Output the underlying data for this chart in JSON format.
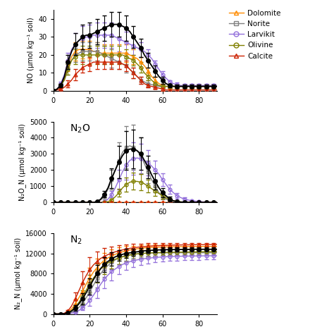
{
  "x": [
    0,
    2,
    4,
    6,
    8,
    10,
    12,
    14,
    16,
    18,
    20,
    22,
    24,
    26,
    28,
    30,
    32,
    34,
    36,
    38,
    40,
    42,
    44,
    46,
    48,
    50,
    52,
    54,
    56,
    58,
    60,
    62,
    64,
    66,
    68,
    70,
    72,
    74,
    76,
    78,
    80,
    82,
    84,
    86,
    88,
    90
  ],
  "colors": {
    "Dolomite": "#FF8C00",
    "Norite": "#808080",
    "Larvikit": "#9370DB",
    "Olivine": "#808000",
    "Calcite": "#CC2200"
  },
  "control_color": "#000000",
  "legend_labels": [
    "Dolomite",
    "Norite",
    "Larvikit",
    "Olivine",
    "Calcite"
  ],
  "NO": {
    "control": [
      0,
      1,
      3,
      8,
      16,
      22,
      26,
      28,
      30,
      31,
      31,
      32,
      33,
      34,
      35,
      36,
      37,
      37,
      37,
      36,
      35,
      33,
      30,
      27,
      24,
      20,
      17,
      14,
      11,
      8,
      6,
      4,
      3,
      2.5,
      2.5,
      2.5,
      2.5,
      2.5,
      2.5,
      2.5,
      2.5,
      2.5,
      2.5,
      2.5,
      2.5,
      2.5
    ],
    "Dolomite": [
      0,
      1,
      3,
      7,
      14,
      19,
      22,
      23,
      23,
      23,
      23,
      22,
      22,
      21,
      21,
      21,
      21,
      21,
      21,
      21,
      21,
      20,
      19,
      18,
      16,
      14,
      11,
      8,
      6,
      4,
      3,
      2.5,
      2.5,
      2.5,
      2.5,
      2.5,
      2.5,
      2.5,
      2.5,
      2.5,
      2.5,
      2.5,
      2.5,
      2.5,
      2.5,
      2.5
    ],
    "Norite": [
      0,
      1,
      3,
      6,
      12,
      17,
      20,
      21,
      22,
      22,
      22,
      22,
      22,
      21,
      20,
      19,
      18,
      17,
      16,
      15,
      14,
      12,
      10,
      8,
      6,
      5,
      4,
      3.5,
      3,
      2.5,
      2.5,
      2.5,
      2.5,
      2.5,
      2.5,
      2.5,
      2.5,
      2.5,
      2.5,
      2.5,
      2.5,
      2.5,
      2.5,
      2.5,
      2.5,
      2.5
    ],
    "Larvikit": [
      0,
      1,
      4,
      9,
      17,
      23,
      26,
      28,
      29,
      30,
      30,
      31,
      31,
      31,
      31,
      31,
      31,
      30,
      29,
      28,
      27,
      26,
      25,
      24,
      23,
      22,
      20,
      18,
      15,
      12,
      9,
      7,
      5,
      4,
      3.5,
      3,
      3,
      3,
      3,
      3,
      3,
      3,
      3,
      3,
      3,
      3
    ],
    "Olivine": [
      0,
      1,
      3,
      6,
      12,
      17,
      19,
      20,
      20,
      20,
      20,
      20,
      20,
      20,
      20,
      20,
      20,
      20,
      20,
      20,
      19,
      18,
      17,
      15,
      13,
      10,
      8,
      6,
      4,
      3,
      2.5,
      2.5,
      2.5,
      2.5,
      2.5,
      2.5,
      2.5,
      2.5,
      2.5,
      2.5,
      2.5,
      2.5,
      2.5,
      2.5,
      2.5,
      2.5
    ],
    "Calcite": [
      0,
      0.5,
      1,
      2,
      4,
      6,
      9,
      11,
      13,
      14,
      15,
      16,
      16,
      16,
      16,
      16,
      16,
      16,
      16,
      15,
      14,
      12,
      10,
      8,
      6,
      4,
      3,
      2.5,
      2,
      1.5,
      1,
      0.5,
      0.5,
      0.5,
      0.5,
      0.5,
      0.5,
      0.5,
      0.5,
      0.5,
      0.5,
      0.5,
      0.5,
      0.5,
      0.5,
      0.5
    ],
    "control_err": [
      0,
      0.5,
      1,
      2,
      4,
      5,
      6,
      7,
      7,
      7,
      7,
      7,
      7,
      7,
      7,
      7,
      7,
      7,
      7,
      7,
      7,
      6,
      6,
      5,
      5,
      4,
      4,
      3,
      3,
      2,
      2,
      1,
      1,
      1,
      1,
      1,
      1,
      1,
      1,
      1,
      1,
      1,
      1,
      1,
      1,
      1
    ],
    "Dolomite_err": [
      0,
      0.5,
      1,
      2,
      3,
      4,
      5,
      5,
      5,
      5,
      5,
      5,
      5,
      5,
      5,
      5,
      5,
      5,
      5,
      5,
      5,
      4,
      4,
      3,
      3,
      3,
      2,
      2,
      2,
      1,
      1,
      1,
      1,
      1,
      1,
      1,
      1,
      1,
      1,
      1,
      1,
      1,
      1,
      1,
      1,
      1
    ],
    "Norite_err": [
      0,
      0.5,
      1,
      2,
      3,
      4,
      4,
      5,
      5,
      5,
      5,
      5,
      5,
      5,
      5,
      5,
      5,
      5,
      4,
      4,
      4,
      3,
      3,
      3,
      2,
      2,
      2,
      1,
      1,
      1,
      1,
      1,
      1,
      1,
      1,
      1,
      1,
      1,
      1,
      1,
      1,
      1,
      1,
      1,
      1,
      1
    ],
    "Larvikit_err": [
      0,
      0.5,
      1,
      2,
      4,
      5,
      6,
      6,
      7,
      7,
      7,
      7,
      7,
      7,
      7,
      7,
      7,
      7,
      7,
      6,
      6,
      5,
      5,
      5,
      4,
      4,
      3,
      3,
      2,
      2,
      2,
      1,
      1,
      1,
      1,
      1,
      1,
      1,
      1,
      1,
      1,
      1,
      1,
      1,
      1,
      1
    ],
    "Olivine_err": [
      0,
      0.5,
      1,
      2,
      3,
      4,
      4,
      5,
      5,
      5,
      5,
      5,
      5,
      5,
      5,
      5,
      5,
      5,
      5,
      4,
      4,
      4,
      3,
      3,
      3,
      2,
      2,
      2,
      1,
      1,
      1,
      1,
      1,
      1,
      1,
      1,
      1,
      1,
      1,
      1,
      1,
      1,
      1,
      1,
      1,
      1
    ],
    "Calcite_err": [
      0,
      0.3,
      0.5,
      1,
      2,
      2,
      3,
      3,
      3,
      4,
      4,
      4,
      4,
      4,
      4,
      4,
      4,
      4,
      4,
      4,
      3,
      3,
      3,
      2,
      2,
      2,
      1,
      1,
      1,
      1,
      1,
      1,
      1,
      1,
      1,
      1,
      1,
      1,
      1,
      1,
      1,
      1,
      1,
      1,
      1,
      1
    ]
  },
  "N2O": {
    "control": [
      0,
      0,
      0,
      0,
      0,
      0,
      0,
      0,
      0,
      0,
      0,
      0,
      50,
      200,
      500,
      900,
      1500,
      2000,
      2500,
      2900,
      3200,
      3300,
      3300,
      3200,
      3000,
      2600,
      2200,
      1700,
      1300,
      900,
      600,
      400,
      200,
      100,
      50,
      20,
      10,
      5,
      2,
      1,
      0,
      0,
      0,
      0,
      0,
      0
    ],
    "Dolomite": [
      0,
      0,
      0,
      0,
      0,
      0,
      0,
      0,
      0,
      0,
      0,
      0,
      0,
      0,
      0,
      0,
      0,
      0,
      0,
      0,
      0,
      0,
      0,
      0,
      0,
      0,
      0,
      0,
      0,
      0,
      0,
      0,
      0,
      0,
      0,
      0,
      0,
      0,
      0,
      0,
      0,
      0,
      0,
      0,
      0,
      0
    ],
    "Norite": [
      0,
      0,
      0,
      0,
      0,
      0,
      0,
      0,
      0,
      0,
      0,
      0,
      30,
      150,
      400,
      800,
      1400,
      2000,
      2600,
      3100,
      3400,
      3500,
      3400,
      3200,
      2900,
      2400,
      1900,
      1400,
      1000,
      600,
      400,
      200,
      100,
      50,
      20,
      10,
      5,
      2,
      1,
      0,
      0,
      0,
      0,
      0,
      0,
      0
    ],
    "Larvikit": [
      0,
      0,
      0,
      0,
      0,
      0,
      0,
      0,
      0,
      0,
      0,
      0,
      0,
      0,
      50,
      200,
      500,
      900,
      1400,
      1900,
      2300,
      2600,
      2700,
      2750,
      2700,
      2600,
      2450,
      2250,
      2000,
      1750,
      1400,
      1100,
      800,
      600,
      400,
      300,
      200,
      150,
      100,
      80,
      60,
      40,
      30,
      20,
      10,
      5
    ],
    "Olivine": [
      0,
      0,
      0,
      0,
      0,
      0,
      0,
      0,
      0,
      0,
      0,
      0,
      0,
      0,
      0,
      50,
      150,
      350,
      600,
      900,
      1100,
      1250,
      1300,
      1300,
      1250,
      1150,
      1000,
      850,
      700,
      550,
      400,
      280,
      180,
      110,
      70,
      40,
      20,
      10,
      5,
      2,
      0,
      0,
      0,
      0,
      0,
      0
    ],
    "Calcite": [
      0,
      0,
      0,
      0,
      0,
      0,
      0,
      0,
      0,
      0,
      0,
      0,
      0,
      0,
      0,
      0,
      0,
      0,
      0,
      0,
      0,
      0,
      0,
      0,
      0,
      0,
      0,
      0,
      0,
      0,
      0,
      0,
      0,
      0,
      0,
      0,
      0,
      0,
      0,
      0,
      0,
      0,
      0,
      0,
      0,
      0
    ],
    "control_err": [
      0,
      0,
      0,
      0,
      0,
      0,
      0,
      0,
      0,
      0,
      0,
      0,
      20,
      80,
      200,
      400,
      600,
      800,
      1000,
      1100,
      1200,
      1200,
      1200,
      1100,
      1000,
      900,
      700,
      600,
      500,
      400,
      300,
      200,
      150,
      100,
      50,
      20,
      10,
      5,
      2,
      1,
      0,
      0,
      0,
      0,
      0,
      0
    ],
    "Norite_err": [
      0,
      0,
      0,
      0,
      0,
      0,
      0,
      0,
      0,
      0,
      0,
      0,
      15,
      60,
      150,
      350,
      600,
      900,
      1100,
      1200,
      1300,
      1400,
      1400,
      1300,
      1100,
      900,
      700,
      500,
      400,
      300,
      200,
      150,
      100,
      50,
      20,
      10,
      5,
      2,
      1,
      0,
      0,
      0,
      0,
      0,
      0,
      0
    ],
    "Larvikit_err": [
      0,
      0,
      0,
      0,
      0,
      0,
      0,
      0,
      0,
      0,
      0,
      0,
      0,
      0,
      20,
      80,
      200,
      400,
      600,
      800,
      900,
      1000,
      1000,
      1000,
      950,
      900,
      800,
      700,
      600,
      500,
      400,
      350,
      280,
      220,
      170,
      130,
      100,
      80,
      60,
      50,
      40,
      30,
      20,
      15,
      10,
      5
    ],
    "Olivine_err": [
      0,
      0,
      0,
      0,
      0,
      0,
      0,
      0,
      0,
      0,
      0,
      0,
      0,
      0,
      0,
      20,
      60,
      130,
      240,
      360,
      440,
      500,
      520,
      520,
      500,
      460,
      400,
      340,
      280,
      220,
      160,
      110,
      70,
      45,
      30,
      15,
      8,
      4,
      2,
      1,
      0,
      0,
      0,
      0,
      0,
      0
    ],
    "Dolomite_err": [
      0,
      0,
      0,
      0,
      0,
      0,
      0,
      0,
      0,
      0,
      0,
      0,
      0,
      0,
      0,
      0,
      0,
      0,
      0,
      0,
      0,
      0,
      0,
      0,
      0,
      0,
      0,
      0,
      0,
      0,
      0,
      0,
      0,
      0,
      0,
      0,
      0,
      0,
      0,
      0,
      0,
      0,
      0,
      0,
      0,
      0
    ],
    "Calcite_err": [
      0,
      0,
      0,
      0,
      0,
      0,
      0,
      0,
      0,
      0,
      0,
      0,
      0,
      0,
      0,
      0,
      0,
      0,
      0,
      0,
      0,
      0,
      0,
      0,
      0,
      0,
      0,
      0,
      0,
      0,
      0,
      0,
      0,
      0,
      0,
      0,
      0,
      0,
      0,
      0,
      0,
      0,
      0,
      0,
      0,
      0
    ]
  },
  "N2": {
    "control": [
      0,
      0,
      0,
      50,
      200,
      600,
      1200,
      2000,
      3000,
      4200,
      5500,
      6800,
      8000,
      9000,
      9800,
      10400,
      10900,
      11300,
      11600,
      11800,
      12000,
      12100,
      12200,
      12300,
      12400,
      12500,
      12550,
      12600,
      12650,
      12680,
      12700,
      12720,
      12730,
      12740,
      12750,
      12760,
      12770,
      12780,
      12790,
      12800,
      12800,
      12800,
      12800,
      12800,
      12800,
      12800
    ],
    "Dolomite": [
      0,
      0,
      0,
      100,
      400,
      1000,
      2000,
      3200,
      4500,
      5900,
      7200,
      8300,
      9200,
      10000,
      10600,
      11100,
      11500,
      11800,
      12100,
      12300,
      12500,
      12650,
      12780,
      12900,
      13000,
      13080,
      13140,
      13180,
      13210,
      13230,
      13250,
      13270,
      13280,
      13290,
      13300,
      13310,
      13320,
      13330,
      13340,
      13350,
      13360,
      13360,
      13360,
      13360,
      13360,
      13360
    ],
    "Norite": [
      0,
      0,
      0,
      30,
      120,
      350,
      700,
      1300,
      2100,
      3200,
      4400,
      5700,
      7000,
      8000,
      8900,
      9600,
      10200,
      10700,
      11100,
      11400,
      11600,
      11750,
      11850,
      11920,
      11970,
      12010,
      12040,
      12060,
      12075,
      12085,
      12095,
      12100,
      12105,
      12110,
      12115,
      12120,
      12120,
      12120,
      12120,
      12120,
      12120,
      12120,
      12120,
      12120,
      12120,
      12120
    ],
    "Larvikit": [
      0,
      0,
      0,
      10,
      50,
      150,
      350,
      700,
      1200,
      1900,
      2700,
      3700,
      4800,
      5900,
      6900,
      7700,
      8400,
      8900,
      9400,
      9800,
      10100,
      10350,
      10550,
      10700,
      10830,
      10940,
      11030,
      11110,
      11180,
      11240,
      11290,
      11330,
      11360,
      11390,
      11410,
      11430,
      11450,
      11460,
      11470,
      11480,
      11490,
      11500,
      11510,
      11520,
      11520,
      11520
    ],
    "Olivine": [
      0,
      0,
      0,
      60,
      250,
      700,
      1400,
      2300,
      3400,
      4700,
      6000,
      7100,
      8100,
      8900,
      9600,
      10100,
      10500,
      10850,
      11100,
      11300,
      11500,
      11650,
      11780,
      11880,
      11960,
      12020,
      12070,
      12110,
      12140,
      12160,
      12180,
      12200,
      12215,
      12230,
      12240,
      12250,
      12260,
      12270,
      12280,
      12290,
      12300,
      12310,
      12320,
      12330,
      12340,
      12350
    ],
    "Calcite": [
      0,
      0,
      0,
      150,
      600,
      1600,
      3000,
      4600,
      6200,
      7600,
      8800,
      9700,
      10400,
      11000,
      11400,
      11750,
      12050,
      12300,
      12500,
      12680,
      12850,
      12980,
      13100,
      13200,
      13280,
      13350,
      13410,
      13460,
      13500,
      13530,
      13560,
      13580,
      13600,
      13620,
      13640,
      13660,
      13670,
      13680,
      13690,
      13700,
      13710,
      13720,
      13730,
      13740,
      13750,
      13760
    ],
    "control_err": [
      0,
      0,
      0,
      20,
      80,
      250,
      500,
      800,
      1100,
      1400,
      1600,
      1700,
      1700,
      1600,
      1500,
      1400,
      1300,
      1200,
      1100,
      1000,
      900,
      800,
      700,
      650,
      600,
      550,
      500,
      480,
      460,
      440,
      420,
      400,
      390,
      380,
      370,
      360,
      360,
      360,
      360,
      360,
      360,
      360,
      360,
      360,
      360,
      360
    ],
    "Dolomite_err": [
      0,
      0,
      0,
      40,
      160,
      400,
      800,
      1200,
      1600,
      1800,
      1900,
      1900,
      1800,
      1600,
      1500,
      1400,
      1300,
      1200,
      1100,
      1000,
      900,
      800,
      720,
      660,
      610,
      570,
      540,
      520,
      500,
      480,
      460,
      450,
      440,
      440,
      440,
      440,
      440,
      440,
      440,
      440,
      440,
      440,
      440,
      440,
      440,
      440
    ],
    "Norite_err": [
      0,
      0,
      0,
      12,
      50,
      140,
      280,
      500,
      800,
      1100,
      1400,
      1600,
      1700,
      1700,
      1600,
      1500,
      1400,
      1300,
      1200,
      1100,
      1000,
      900,
      800,
      720,
      660,
      610,
      570,
      540,
      510,
      490,
      470,
      450,
      440,
      440,
      440,
      440,
      440,
      440,
      440,
      440,
      440,
      440,
      440,
      440,
      440,
      440
    ],
    "Larvikit_err": [
      0,
      0,
      0,
      4,
      20,
      60,
      140,
      280,
      480,
      760,
      1050,
      1350,
      1600,
      1750,
      1800,
      1780,
      1720,
      1640,
      1560,
      1480,
      1400,
      1320,
      1250,
      1180,
      1120,
      1070,
      1030,
      990,
      960,
      930,
      900,
      880,
      860,
      840,
      820,
      800,
      790,
      780,
      770,
      760,
      750,
      740,
      730,
      720,
      720,
      720
    ],
    "Olivine_err": [
      0,
      0,
      0,
      25,
      100,
      280,
      560,
      900,
      1250,
      1550,
      1780,
      1900,
      1900,
      1800,
      1680,
      1560,
      1450,
      1360,
      1270,
      1180,
      1100,
      1020,
      950,
      880,
      820,
      770,
      720,
      680,
      650,
      620,
      590,
      570,
      550,
      540,
      530,
      520,
      510,
      500,
      490,
      480,
      470,
      460,
      450,
      440,
      430,
      420
    ],
    "Calcite_err": [
      0,
      0,
      0,
      60,
      240,
      640,
      1200,
      1800,
      2200,
      2400,
      2400,
      2200,
      2000,
      1800,
      1600,
      1450,
      1320,
      1200,
      1100,
      1000,
      920,
      840,
      770,
      710,
      660,
      620,
      580,
      550,
      520,
      500,
      480,
      460,
      450,
      440,
      430,
      420,
      410,
      400,
      390,
      380,
      370,
      360,
      350,
      340,
      330,
      320
    ]
  },
  "ylim_NO": [
    0,
    45
  ],
  "ylim_N2O": [
    0,
    5000
  ],
  "ylim_N2": [
    0,
    16000
  ],
  "yticks_NO": [
    0,
    10,
    20,
    30,
    40
  ],
  "yticks_N2O": [
    0,
    1000,
    2000,
    3000,
    4000,
    5000
  ],
  "yticks_N2": [
    0,
    4000,
    8000,
    12000,
    16000
  ],
  "xlim": [
    0,
    90
  ],
  "xticks": [
    0,
    20,
    40,
    60,
    80
  ]
}
